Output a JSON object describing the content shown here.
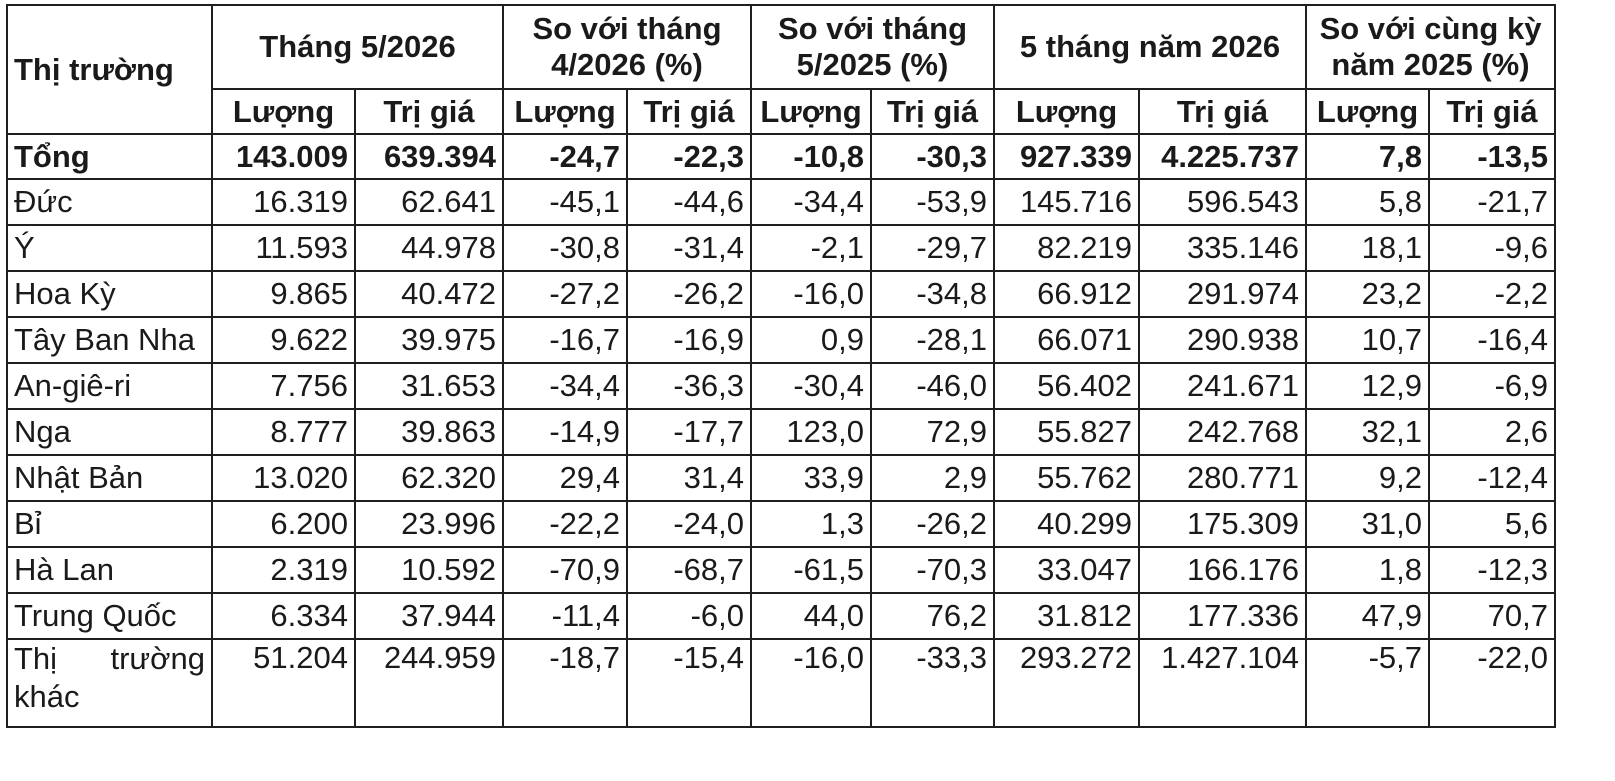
{
  "table": {
    "header": {
      "market": "Thị trường",
      "groups": [
        "Tháng 5/2026",
        "So với tháng 4/2026 (%)",
        "So với tháng 5/2025 (%)",
        "5 tháng năm 2026",
        "So với cùng kỳ năm 2025 (%)"
      ],
      "sub": [
        "Lượng",
        "Trị giá",
        "Lượng",
        "Trị giá",
        "Lượng",
        "Trị giá",
        "Lượng",
        "Trị giá",
        "Lượng",
        "Trị giá"
      ]
    },
    "total": {
      "label": "Tổng",
      "values": [
        "143.009",
        "639.394",
        "-24,7",
        "-22,3",
        "-10,8",
        "-30,3",
        "927.339",
        "4.225.737",
        "7,8",
        "-13,5"
      ]
    },
    "rows": [
      {
        "name": "Đức",
        "values": [
          "16.319",
          "62.641",
          "-45,1",
          "-44,6",
          "-34,4",
          "-53,9",
          "145.716",
          "596.543",
          "5,8",
          "-21,7"
        ]
      },
      {
        "name": "Ý",
        "values": [
          "11.593",
          "44.978",
          "-30,8",
          "-31,4",
          "-2,1",
          "-29,7",
          "82.219",
          "335.146",
          "18,1",
          "-9,6"
        ]
      },
      {
        "name": "Hoa Kỳ",
        "values": [
          "9.865",
          "40.472",
          "-27,2",
          "-26,2",
          "-16,0",
          "-34,8",
          "66.912",
          "291.974",
          "23,2",
          "-2,2"
        ]
      },
      {
        "name": "Tây Ban Nha",
        "values": [
          "9.622",
          "39.975",
          "-16,7",
          "-16,9",
          "0,9",
          "-28,1",
          "66.071",
          "290.938",
          "10,7",
          "-16,4"
        ]
      },
      {
        "name": "An-giê-ri",
        "values": [
          "7.756",
          "31.653",
          "-34,4",
          "-36,3",
          "-30,4",
          "-46,0",
          "56.402",
          "241.671",
          "12,9",
          "-6,9"
        ]
      },
      {
        "name": "Nga",
        "values": [
          "8.777",
          "39.863",
          "-14,9",
          "-17,7",
          "123,0",
          "72,9",
          "55.827",
          "242.768",
          "32,1",
          "2,6"
        ]
      },
      {
        "name": "Nhật Bản",
        "values": [
          "13.020",
          "62.320",
          "29,4",
          "31,4",
          "33,9",
          "2,9",
          "55.762",
          "280.771",
          "9,2",
          "-12,4"
        ]
      },
      {
        "name": "Bỉ",
        "values": [
          "6.200",
          "23.996",
          "-22,2",
          "-24,0",
          "1,3",
          "-26,2",
          "40.299",
          "175.309",
          "31,0",
          "5,6"
        ]
      },
      {
        "name": "Hà Lan",
        "values": [
          "2.319",
          "10.592",
          "-70,9",
          "-68,7",
          "-61,5",
          "-70,3",
          "33.047",
          "166.176",
          "1,8",
          "-12,3"
        ]
      },
      {
        "name": "Trung Quốc",
        "values": [
          "6.334",
          "37.944",
          "-11,4",
          "-6,0",
          "44,0",
          "76,2",
          "31.812",
          "177.336",
          "47,9",
          "70,7"
        ]
      },
      {
        "name": "Thị trường khác",
        "values": [
          "51.204",
          "244.959",
          "-18,7",
          "-15,4",
          "-16,0",
          "-33,3",
          "293.272",
          "1.427.104",
          "-5,7",
          "-22,0"
        ]
      }
    ]
  }
}
